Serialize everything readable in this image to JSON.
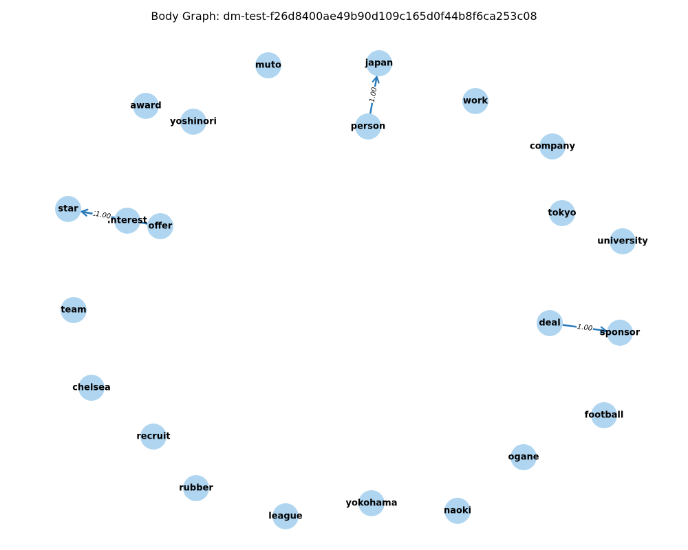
{
  "title": "Body Graph: dm-test-f26d8400ae49b90d109c165d0f44b8f6ca253c08",
  "colors": {
    "node_fill": "#afd5f0",
    "edge": "#2b7bba",
    "text": "#000000",
    "background": "#ffffff"
  },
  "nodes": [
    {
      "id": "japan",
      "label": "japan"
    },
    {
      "id": "muto",
      "label": "muto"
    },
    {
      "id": "work",
      "label": "work"
    },
    {
      "id": "person",
      "label": "person"
    },
    {
      "id": "award",
      "label": "award"
    },
    {
      "id": "yoshinori",
      "label": "yoshinori"
    },
    {
      "id": "company",
      "label": "company"
    },
    {
      "id": "star",
      "label": "star"
    },
    {
      "id": "interest",
      "label": "interest"
    },
    {
      "id": "offer",
      "label": "offer"
    },
    {
      "id": "tokyo",
      "label": "tokyo"
    },
    {
      "id": "university",
      "label": "university"
    },
    {
      "id": "team",
      "label": "team"
    },
    {
      "id": "deal",
      "label": "deal"
    },
    {
      "id": "sponsor",
      "label": "sponsor"
    },
    {
      "id": "chelsea",
      "label": "chelsea"
    },
    {
      "id": "football",
      "label": "football"
    },
    {
      "id": "recruit",
      "label": "recruit"
    },
    {
      "id": "ogane",
      "label": "ogane"
    },
    {
      "id": "rubber",
      "label": "rubber"
    },
    {
      "id": "yokohama",
      "label": "yokohama"
    },
    {
      "id": "naoki",
      "label": "naoki"
    },
    {
      "id": "league",
      "label": "league"
    }
  ],
  "edges": [
    {
      "source": "person",
      "target": "japan",
      "weight": "1.00"
    },
    {
      "source": "interest",
      "target": "star",
      "weight": "1.00"
    },
    {
      "source": "offer",
      "target": "star",
      "weight": "1.00"
    },
    {
      "source": "deal",
      "target": "sponsor",
      "weight": "1.00"
    }
  ]
}
